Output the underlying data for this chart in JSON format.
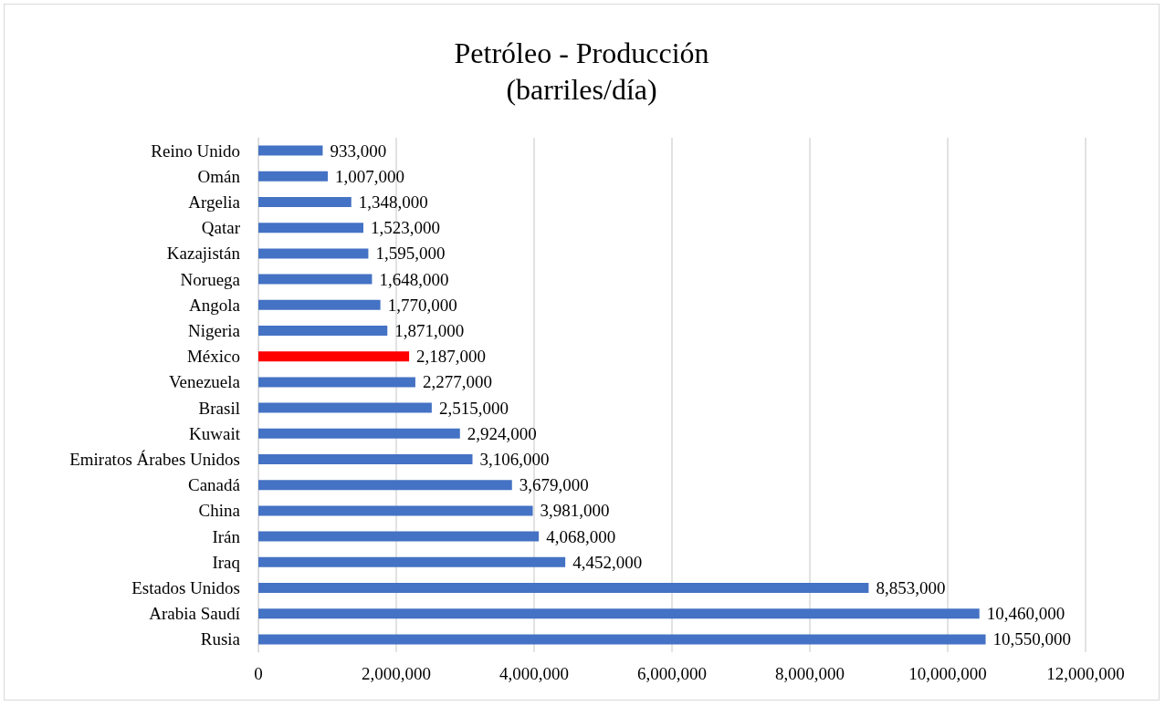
{
  "chart_data": {
    "type": "bar",
    "orientation": "horizontal",
    "title": "Petróleo - Producción\n(barriles/día)",
    "categories": [
      "Reino Unido",
      "Omán",
      "Argelia",
      "Qatar",
      "Kazajistán",
      "Noruega",
      "Angola",
      "Nigeria",
      "México",
      "Venezuela",
      "Brasil",
      "Kuwait",
      "Emiratos Árabes Unidos",
      "Canadá",
      "China",
      "Irán",
      "Iraq",
      "Estados Unidos",
      "Arabia Saudí",
      "Rusia"
    ],
    "values": [
      933000,
      1007000,
      1348000,
      1523000,
      1595000,
      1648000,
      1770000,
      1871000,
      2187000,
      2277000,
      2515000,
      2924000,
      3106000,
      3679000,
      3981000,
      4068000,
      4452000,
      8853000,
      10460000,
      10550000
    ],
    "value_labels": [
      "933,000",
      "1,007,000",
      "1,348,000",
      "1,523,000",
      "1,595,000",
      "1,648,000",
      "1,770,000",
      "1,871,000",
      "2,187,000",
      "2,277,000",
      "2,515,000",
      "2,924,000",
      "3,106,000",
      "3,679,000",
      "3,981,000",
      "4,068,000",
      "4,452,000",
      "8,853,000",
      "10,460,000",
      "10,550,000"
    ],
    "colors": [
      "#4472c4",
      "#4472c4",
      "#4472c4",
      "#4472c4",
      "#4472c4",
      "#4472c4",
      "#4472c4",
      "#4472c4",
      "#ff0000",
      "#4472c4",
      "#4472c4",
      "#4472c4",
      "#4472c4",
      "#4472c4",
      "#4472c4",
      "#4472c4",
      "#4472c4",
      "#4472c4",
      "#4472c4",
      "#4472c4"
    ],
    "xlim": [
      0,
      12000000
    ],
    "xticks": [
      0,
      {
        "value": 2000000,
        "label": "2,000,000"
      },
      {
        "value": 4000000,
        "label": "4,000,000"
      },
      {
        "value": 6000000,
        "label": "6,000,000"
      },
      {
        "value": 8000000,
        "label": "8,000,000"
      },
      {
        "value": 10000000,
        "label": "10,000,000"
      },
      {
        "value": 12000000,
        "label": "12,000,000"
      }
    ],
    "grid": "x"
  }
}
